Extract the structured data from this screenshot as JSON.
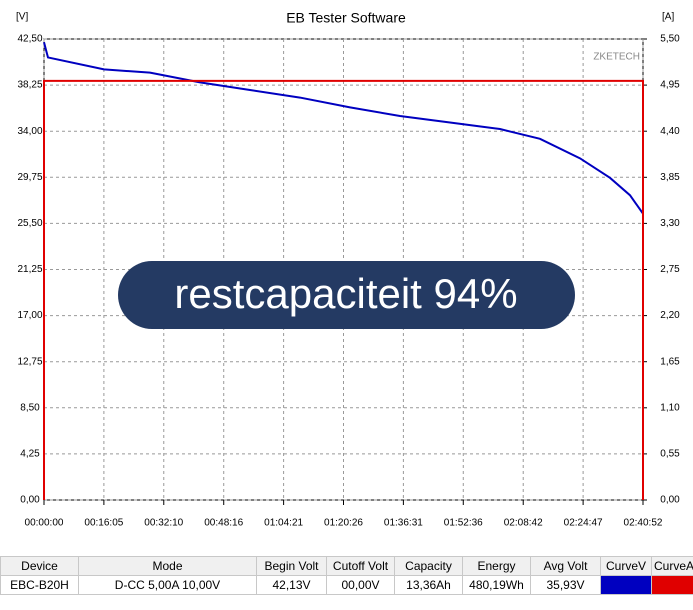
{
  "chart_data": {
    "type": "line",
    "title": "EB Tester Software",
    "y_unit": "[V]",
    "y2_unit": "[A]",
    "brand": "ZKETECH",
    "annotation": "restcapaciteit 94%",
    "xlim": [
      0,
      9652
    ],
    "xticks": [
      {
        "value": 0,
        "label": "00:00:00"
      },
      {
        "value": 965,
        "label": "00:16:05"
      },
      {
        "value": 1930,
        "label": "00:32:10"
      },
      {
        "value": 2896,
        "label": "00:48:16"
      },
      {
        "value": 3861,
        "label": "01:04:21"
      },
      {
        "value": 4826,
        "label": "01:20:26"
      },
      {
        "value": 5791,
        "label": "01:36:31"
      },
      {
        "value": 6756,
        "label": "01:52:36"
      },
      {
        "value": 7722,
        "label": "02:08:42"
      },
      {
        "value": 8687,
        "label": "02:24:47"
      },
      {
        "value": 9652,
        "label": "02:40:52"
      }
    ],
    "ylim": [
      0,
      42.5
    ],
    "yticks": [
      {
        "value": 0,
        "label": "0,00"
      },
      {
        "value": 4.25,
        "label": "4,25"
      },
      {
        "value": 8.5,
        "label": "8,50"
      },
      {
        "value": 12.75,
        "label": "12,75"
      },
      {
        "value": 17,
        "label": "17,00"
      },
      {
        "value": 21.25,
        "label": "21,25"
      },
      {
        "value": 25.5,
        "label": "25,50"
      },
      {
        "value": 29.75,
        "label": "29,75"
      },
      {
        "value": 34,
        "label": "34,00"
      },
      {
        "value": 38.25,
        "label": "38,25"
      },
      {
        "value": 42.5,
        "label": "42,50"
      }
    ],
    "y2lim": [
      0,
      5.5
    ],
    "y2ticks": [
      {
        "value": 0,
        "label": "0,00"
      },
      {
        "value": 0.55,
        "label": "0,55"
      },
      {
        "value": 1.1,
        "label": "1,10"
      },
      {
        "value": 1.65,
        "label": "1,65"
      },
      {
        "value": 2.2,
        "label": "2,20"
      },
      {
        "value": 2.75,
        "label": "2,75"
      },
      {
        "value": 3.3,
        "label": "3,30"
      },
      {
        "value": 3.85,
        "label": "3,85"
      },
      {
        "value": 4.4,
        "label": "4,40"
      },
      {
        "value": 4.95,
        "label": "4,95"
      },
      {
        "value": 5.5,
        "label": "5,50"
      }
    ],
    "grid": true,
    "series": [
      {
        "color": "#0000c0",
        "x": [
          0,
          32,
          64,
          967,
          1708,
          2514,
          3319,
          4125,
          4931,
          5736,
          6542,
          7348,
          7992,
          8637,
          9120,
          9442,
          9652
        ],
        "values": [
          42.2,
          41.5,
          40.8,
          39.7,
          39.4,
          38.5,
          37.8,
          37.1,
          36.2,
          35.4,
          34.8,
          34.2,
          33.3,
          31.5,
          29.7,
          28.1,
          26.4
        ]
      },
      {
        "color": "#e00000",
        "axis": "y2",
        "x": [
          0,
          0,
          9652,
          9652
        ],
        "values": [
          0,
          5,
          5,
          0
        ]
      }
    ]
  },
  "table": {
    "columns": [
      "Device",
      "Mode",
      "Begin Volt",
      "Cutoff Volt",
      "Capacity",
      "Energy",
      "Avg Volt",
      "CurveV",
      "CurveA"
    ],
    "rows": [
      [
        "EBC-B20H",
        "D-CC  5,00A  10,00V",
        "42,13V",
        "00,00V",
        "13,36Ah",
        "480,19Wh",
        "35,93V"
      ]
    ]
  }
}
